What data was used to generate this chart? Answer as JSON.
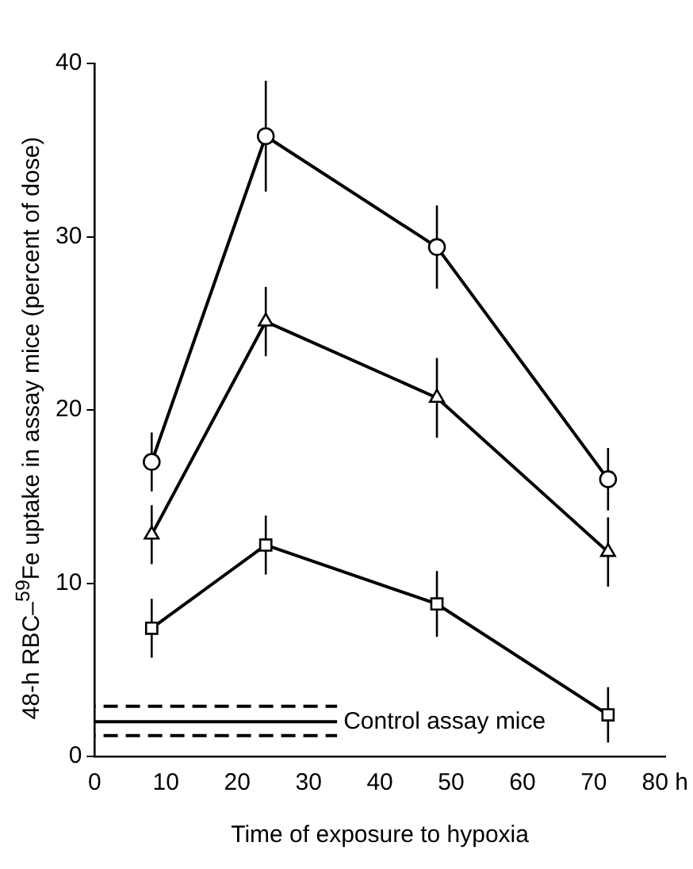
{
  "chart_data": {
    "type": "line",
    "xlabel": "Time of exposure to hypoxia",
    "ylabel": "48-h RBC–$^{59}$Fe uptake in assay mice (percent of dose)",
    "xlim": [
      0,
      80
    ],
    "xticks": [
      0,
      10,
      20,
      30,
      40,
      50,
      60,
      70,
      {
        "value": 80,
        "label": "80 h"
      }
    ],
    "ylim": [
      0,
      40
    ],
    "yticks": [
      0,
      10,
      20,
      30,
      40
    ],
    "grid": false,
    "legend": false,
    "series": [
      {
        "color": "#000000",
        "marker": "circle",
        "line_style": "solid",
        "x": [
          8,
          24,
          48,
          72
        ],
        "values": [
          17,
          35.8,
          29.4,
          16
        ],
        "errors": [
          1.7,
          3.2,
          2.4,
          1.8
        ]
      },
      {
        "color": "#000000",
        "marker": "triangle",
        "line_style": "solid",
        "x": [
          8,
          24,
          48,
          72
        ],
        "values": [
          12.8,
          25.1,
          20.7,
          11.8
        ],
        "errors": [
          1.7,
          2,
          2.3,
          2
        ]
      },
      {
        "color": "#000000",
        "marker": "square",
        "line_style": "solid",
        "x": [
          8,
          24,
          48,
          72
        ],
        "values": [
          7.4,
          12.2,
          8.8,
          2.4
        ],
        "errors": [
          1.7,
          1.7,
          1.9,
          1.6
        ]
      },
      {
        "name": "Control assay mice",
        "color": "#000000",
        "marker": "none",
        "line_style": "solid",
        "x": [
          0,
          34
        ],
        "values": [
          2,
          2
        ]
      },
      {
        "color": "#000000",
        "marker": "none",
        "line_style": "dashed",
        "x": [
          0,
          34
        ],
        "values": [
          2.9,
          2.9
        ]
      },
      {
        "color": "#000000",
        "marker": "none",
        "line_style": "dashed",
        "x": [
          0,
          34
        ],
        "values": [
          1.2,
          1.2
        ]
      }
    ]
  }
}
